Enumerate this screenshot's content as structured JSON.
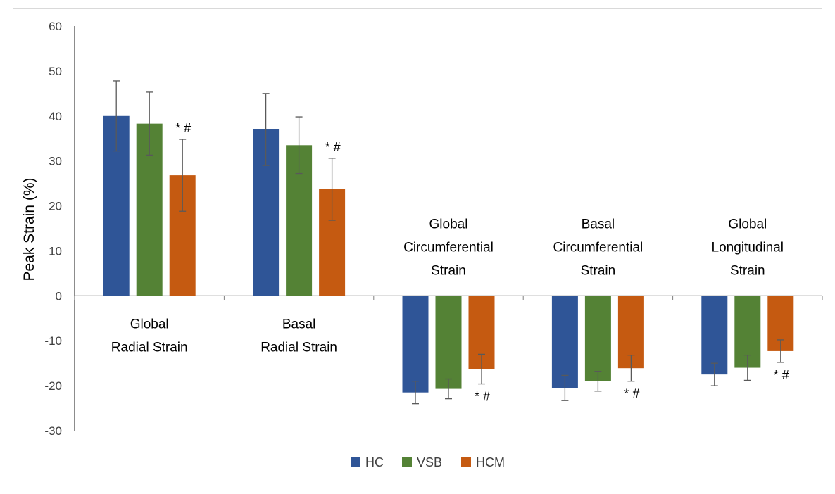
{
  "chart_data": {
    "type": "bar",
    "title": "",
    "xlabel": "",
    "ylabel": "Peak Strain (%)",
    "ylim": [
      -30,
      60
    ],
    "yticks": [
      60,
      50,
      40,
      30,
      20,
      10,
      0,
      -10,
      -20,
      -30
    ],
    "grid": false,
    "legend_position": "bottom",
    "categories": [
      [
        "Global",
        "Radial Strain"
      ],
      [
        "Basal",
        "Radial Strain"
      ],
      [
        "Global",
        "Circumferential",
        "Strain"
      ],
      [
        "Basal",
        "Circumferential",
        "Strain"
      ],
      [
        "Global",
        "Longitudinal",
        "Strain"
      ]
    ],
    "series": [
      {
        "name": "HC",
        "color": "#2F5597",
        "values": [
          40.0,
          37.0,
          -21.5,
          -20.5,
          -17.5
        ],
        "errors": [
          7.8,
          8.0,
          2.5,
          2.8,
          2.5
        ]
      },
      {
        "name": "VSB",
        "color": "#548235",
        "values": [
          38.3,
          33.5,
          -20.7,
          -19.0,
          -16.0
        ],
        "errors": [
          7.0,
          6.3,
          2.2,
          2.2,
          2.8
        ]
      },
      {
        "name": "HCM",
        "color": "#C55A11",
        "values": [
          26.8,
          23.7,
          -16.3,
          -16.1,
          -12.3
        ],
        "errors": [
          8.0,
          6.9,
          3.3,
          2.9,
          2.5
        ]
      }
    ],
    "annotations": [
      "* #",
      "* #",
      "* #",
      "* #",
      "* #"
    ]
  }
}
